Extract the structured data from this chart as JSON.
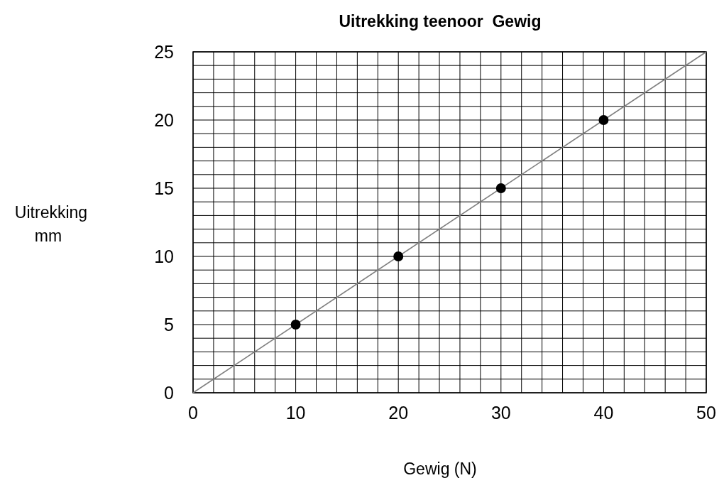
{
  "chart_data": {
    "type": "scatter",
    "title": "Uitrekking teenoor  Gewig",
    "xlabel": "Gewig (N)",
    "ylabel": "Uitrekking mm",
    "xlim": [
      0,
      50
    ],
    "ylim": [
      0,
      25
    ],
    "xticks": [
      0,
      {
        "value": 2,
        "label": null
      },
      {
        "value": 4,
        "label": null
      },
      {
        "value": 6,
        "label": null
      },
      {
        "value": 8,
        "label": null
      },
      10,
      {
        "value": 12,
        "label": null
      },
      {
        "value": 14,
        "label": null
      },
      {
        "value": 16,
        "label": null
      },
      {
        "value": 18,
        "label": null
      },
      20,
      {
        "value": 22,
        "label": null
      },
      {
        "value": 24,
        "label": null
      },
      {
        "value": 26,
        "label": null
      },
      {
        "value": 28,
        "label": null
      },
      30,
      {
        "value": 32,
        "label": null
      },
      {
        "value": 34,
        "label": null
      },
      {
        "value": 36,
        "label": null
      },
      {
        "value": 38,
        "label": null
      },
      40,
      {
        "value": 42,
        "label": null
      },
      {
        "value": 44,
        "label": null
      },
      {
        "value": 46,
        "label": null
      },
      {
        "value": 48,
        "label": null
      },
      50
    ],
    "yticks": [
      0,
      {
        "value": 1,
        "label": null
      },
      {
        "value": 2,
        "label": null
      },
      {
        "value": 3,
        "label": null
      },
      {
        "value": 4,
        "label": null
      },
      5,
      {
        "value": 6,
        "label": null
      },
      {
        "value": 7,
        "label": null
      },
      {
        "value": 8,
        "label": null
      },
      {
        "value": 9,
        "label": null
      },
      10,
      {
        "value": 11,
        "label": null
      },
      {
        "value": 12,
        "label": null
      },
      {
        "value": 13,
        "label": null
      },
      {
        "value": 14,
        "label": null
      },
      15,
      {
        "value": 16,
        "label": null
      },
      {
        "value": 17,
        "label": null
      },
      {
        "value": 18,
        "label": null
      },
      {
        "value": 19,
        "label": null
      },
      20,
      {
        "value": 21,
        "label": null
      },
      {
        "value": 22,
        "label": null
      },
      {
        "value": 23,
        "label": null
      },
      {
        "value": 24,
        "label": null
      },
      25
    ],
    "grid": true,
    "series": [
      {
        "marker": "circle",
        "color": "#000000",
        "x": [
          10,
          20,
          30,
          40
        ],
        "values": [
          5,
          10,
          15,
          20
        ]
      },
      {
        "type": "line",
        "marker": "none",
        "color": "#808080",
        "x": [
          0,
          50
        ],
        "values": [
          0,
          25
        ]
      }
    ]
  }
}
